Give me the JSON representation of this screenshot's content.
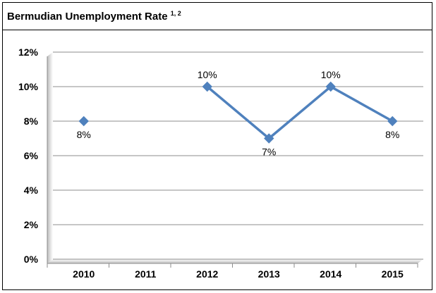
{
  "title": {
    "text": "Bermudian Unemployment Rate",
    "superscript": "1, 2"
  },
  "chart_data": {
    "type": "line",
    "title": "Bermudian Unemployment Rate 1, 2",
    "categories": [
      "2010",
      "2011",
      "2012",
      "2013",
      "2014",
      "2015"
    ],
    "series": [
      {
        "values": [
          8,
          null,
          10,
          7,
          10,
          8
        ],
        "labels": [
          "8%",
          null,
          "10%",
          "7%",
          "10%",
          "8%"
        ],
        "color": "#4F81BD",
        "marker": "diamond"
      }
    ],
    "yticks": [
      "0%",
      "2%",
      "4%",
      "6%",
      "8%",
      "10%",
      "12%"
    ],
    "ylim": [
      0,
      12
    ],
    "xlabel": "",
    "ylabel": "",
    "grid": true,
    "legend": "none"
  }
}
